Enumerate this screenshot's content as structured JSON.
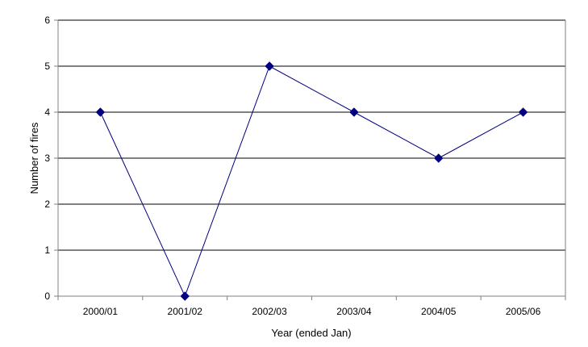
{
  "chart_data": {
    "type": "line",
    "title": "",
    "xlabel": "Year (ended Jan)",
    "ylabel": "Number of fires",
    "categories": [
      "2000/01",
      "2001/02",
      "2002/03",
      "2003/04",
      "2004/05",
      "2005/06"
    ],
    "series": [
      {
        "values": [
          4,
          0,
          5,
          4,
          3,
          4
        ]
      }
    ],
    "ylim": [
      0,
      6
    ],
    "yticks": [
      "0",
      "1",
      "2",
      "3",
      "4",
      "5",
      "6"
    ],
    "grid": true,
    "legend": "none",
    "colors": {
      "line": "#000080",
      "marker": "#000080",
      "grid": "#000000",
      "axis": "#808080"
    }
  }
}
